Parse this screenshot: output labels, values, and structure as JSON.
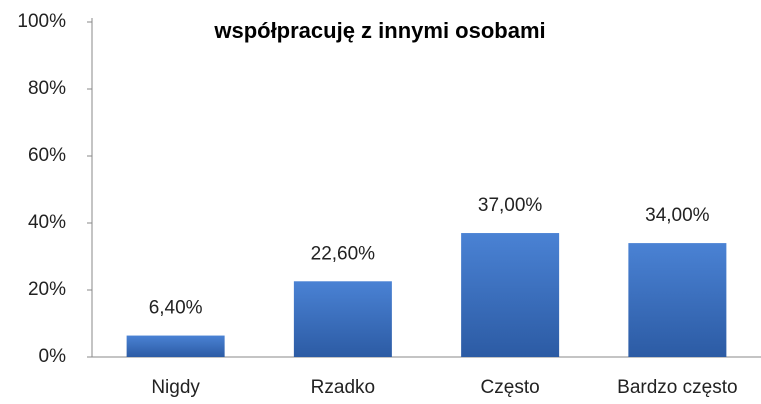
{
  "chart_data": {
    "type": "bar",
    "title": "współpracuję z innymi osobami",
    "categories": [
      "Nigdy",
      "Rzadko",
      "Często",
      "Bardzo często"
    ],
    "values": [
      6.4,
      22.6,
      37,
      34
    ],
    "value_labels": [
      "6,40%",
      "22,60%",
      "37,00%",
      "34,00%"
    ],
    "color": "#3b70c0",
    "ylim": [
      0,
      100
    ],
    "yticks": [
      {
        "value": 0,
        "label": "0%"
      },
      {
        "value": 20,
        "label": "20%"
      },
      {
        "value": 40,
        "label": "40%"
      },
      {
        "value": 60,
        "label": "60%"
      },
      {
        "value": 80,
        "label": "80%"
      },
      {
        "value": 100,
        "label": "100%"
      }
    ],
    "grid": false
  }
}
